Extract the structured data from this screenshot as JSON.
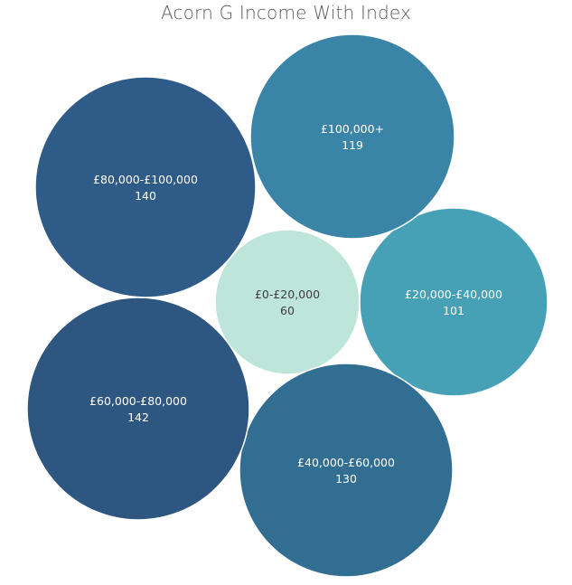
{
  "chart_data": {
    "type": "bubble",
    "title": "Acorn G Income With Index",
    "categories": [
      "£0-£20,000",
      "£20,000-£40,000",
      "£40,000-£60,000",
      "£60,000-£80,000",
      "£80,000-£100,000",
      "£100,000+"
    ],
    "values": [
      60,
      101,
      130,
      142,
      140,
      119
    ],
    "colors": [
      "#bee5d9",
      "#46a1b7",
      "#326e92",
      "#2d5680",
      "#2e5b87",
      "#3a84a7"
    ],
    "label_colors": [
      "#3d3d3d",
      "#ffffff",
      "#ffffff",
      "#ffffff",
      "#ffffff",
      "#ffffff"
    ],
    "size_encodes": "index value",
    "labels_show": [
      "category",
      "value"
    ]
  }
}
